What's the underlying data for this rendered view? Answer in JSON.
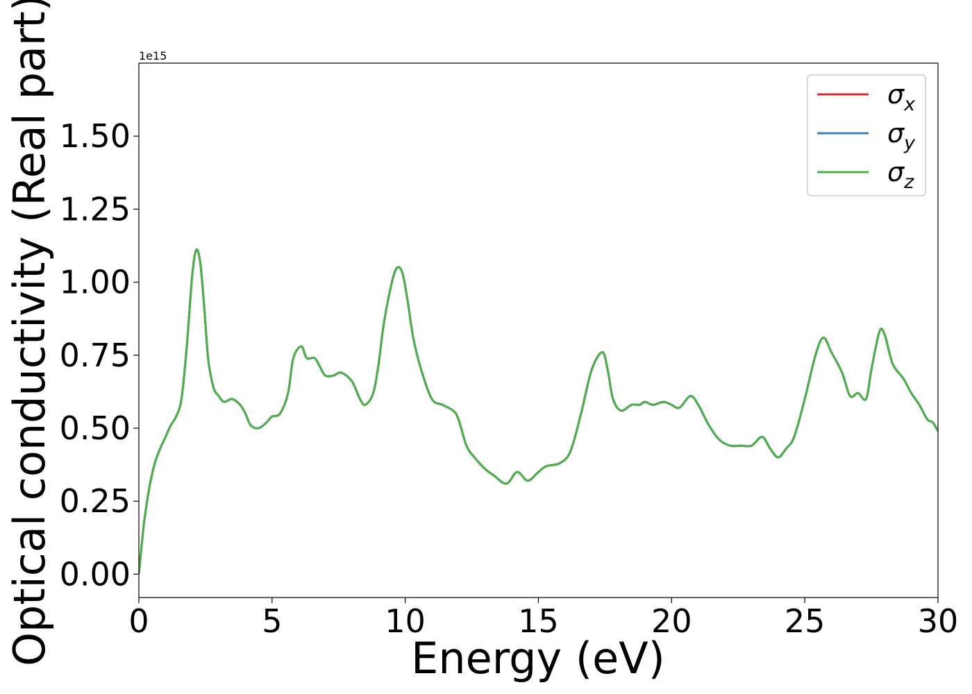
{
  "chart_data": {
    "type": "line",
    "title": "",
    "xlabel": "Energy (eV)",
    "ylabel": "Optical conductivity (Real part)",
    "y_offset_text": "1e15",
    "xlim": [
      0,
      30
    ],
    "ylim": [
      -0.08,
      1.75
    ],
    "x_ticks": [
      0,
      5,
      10,
      15,
      20,
      25,
      30
    ],
    "x_tick_labels": [
      "0",
      "5",
      "10",
      "15",
      "20",
      "25",
      "30"
    ],
    "y_ticks": [
      0,
      0.25,
      0.5,
      0.75,
      1.0,
      1.25,
      1.5
    ],
    "y_tick_labels": [
      "0.00",
      "0.25",
      "0.50",
      "0.75",
      "1.00",
      "1.25",
      "1.50"
    ],
    "grid": false,
    "legend_position": "top-right",
    "legend": [
      {
        "symbol": "σ",
        "subscript": "x",
        "color": "#d62728"
      },
      {
        "symbol": "σ",
        "subscript": "y",
        "color": "#3a7fb8"
      },
      {
        "symbol": "σ",
        "subscript": "z",
        "color": "#4daf4a"
      }
    ],
    "x": [
      0,
      0.2,
      0.4,
      0.6,
      0.8,
      1.0,
      1.2,
      1.4,
      1.6,
      1.8,
      2.0,
      2.15,
      2.3,
      2.45,
      2.6,
      2.8,
      3.0,
      3.2,
      3.5,
      3.8,
      4.0,
      4.2,
      4.5,
      4.8,
      5.0,
      5.3,
      5.6,
      5.8,
      6.1,
      6.3,
      6.6,
      6.8,
      7.0,
      7.3,
      7.6,
      8.0,
      8.3,
      8.5,
      8.8,
      9.0,
      9.2,
      9.5,
      9.7,
      9.9,
      10.1,
      10.3,
      10.6,
      11.0,
      11.4,
      11.8,
      12.0,
      12.3,
      12.6,
      13.0,
      13.3,
      13.8,
      14.2,
      14.6,
      15.0,
      15.3,
      15.8,
      16.2,
      16.6,
      17.0,
      17.4,
      17.6,
      17.8,
      18.1,
      18.5,
      18.8,
      19.0,
      19.3,
      19.7,
      20.0,
      20.3,
      20.7,
      21.0,
      21.4,
      21.8,
      22.2,
      22.6,
      23.0,
      23.4,
      23.7,
      24.0,
      24.3,
      24.6,
      25.0,
      25.4,
      25.7,
      26.0,
      26.4,
      26.7,
      27.0,
      27.3,
      27.5,
      27.8,
      28.0,
      28.3,
      28.7,
      29.0,
      29.3,
      29.6,
      29.8,
      30.0
    ],
    "series": [
      {
        "name": "σx",
        "color": "#d62728",
        "same_as": "σz"
      },
      {
        "name": "σy",
        "color": "#3a7fb8",
        "same_as": "σz"
      },
      {
        "name": "σz",
        "color": "#4daf4a",
        "values": [
          0.0,
          0.18,
          0.3,
          0.38,
          0.43,
          0.47,
          0.51,
          0.54,
          0.6,
          0.78,
          1.02,
          1.11,
          1.07,
          0.92,
          0.74,
          0.64,
          0.61,
          0.59,
          0.6,
          0.58,
          0.55,
          0.51,
          0.5,
          0.52,
          0.54,
          0.55,
          0.62,
          0.74,
          0.78,
          0.74,
          0.74,
          0.71,
          0.68,
          0.68,
          0.69,
          0.66,
          0.6,
          0.58,
          0.62,
          0.72,
          0.86,
          1.0,
          1.05,
          1.03,
          0.93,
          0.81,
          0.7,
          0.6,
          0.58,
          0.56,
          0.53,
          0.44,
          0.4,
          0.36,
          0.34,
          0.31,
          0.35,
          0.32,
          0.35,
          0.37,
          0.38,
          0.42,
          0.55,
          0.7,
          0.76,
          0.7,
          0.6,
          0.56,
          0.58,
          0.58,
          0.59,
          0.58,
          0.59,
          0.58,
          0.57,
          0.61,
          0.58,
          0.51,
          0.46,
          0.44,
          0.44,
          0.44,
          0.47,
          0.43,
          0.4,
          0.43,
          0.47,
          0.6,
          0.75,
          0.81,
          0.76,
          0.69,
          0.61,
          0.62,
          0.6,
          0.7,
          0.83,
          0.82,
          0.72,
          0.67,
          0.62,
          0.58,
          0.53,
          0.52,
          0.49
        ]
      }
    ]
  }
}
